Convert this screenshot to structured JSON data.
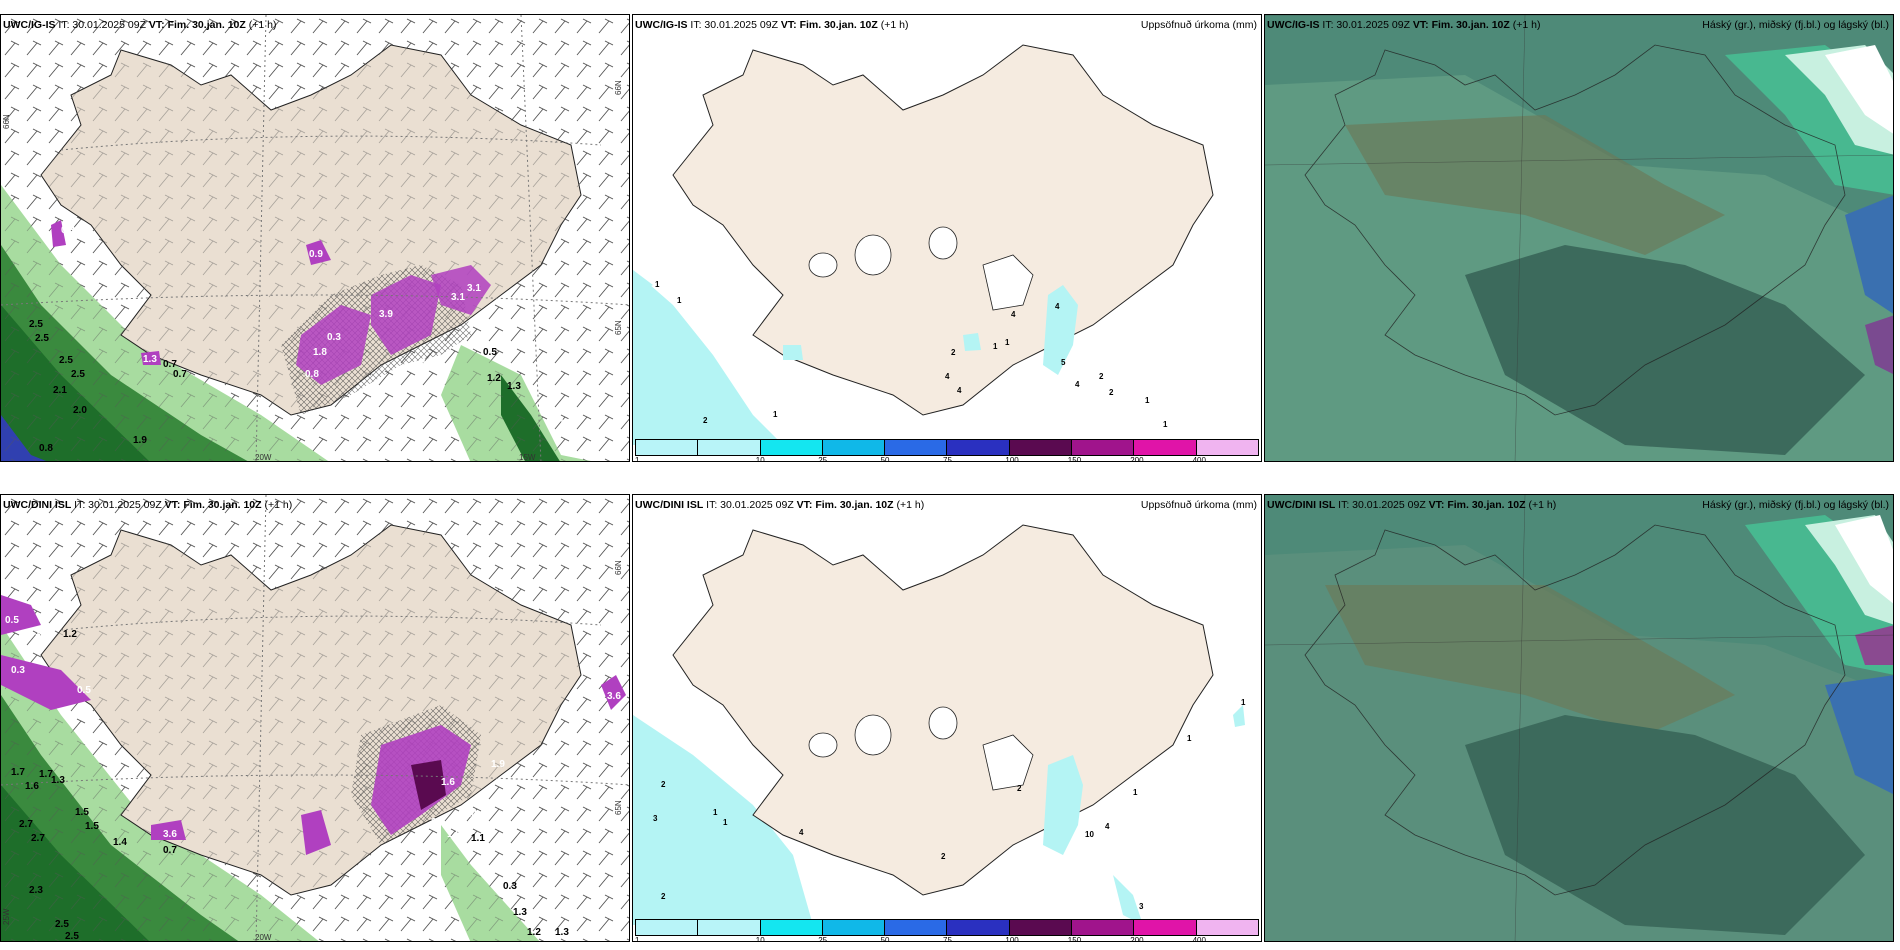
{
  "panels": [
    {
      "model": "UWC/IG-IS",
      "it": "IT: 30.01.2025 09Z",
      "vt_label": "VT:",
      "vt": "Fim. 30.jan. 10Z",
      "lead": "(+1 h)",
      "right_title": ""
    },
    {
      "model": "UWC/IG-IS",
      "it": "IT: 30.01.2025 09Z",
      "vt_label": "VT:",
      "vt": "Fim. 30.jan. 10Z",
      "lead": "(+1 h)",
      "right_title": "Uppsöfnuð úrkoma (mm)"
    },
    {
      "model": "UWC/IG-IS",
      "it": "IT: 30.01.2025 09Z",
      "vt_label": "VT:",
      "vt": "Fim. 30.jan. 10Z",
      "lead": "(+1 h)",
      "right_title": "Háský (gr.), miðský (fj.bl.) og lágský (bl.)"
    },
    {
      "model": "UWC/DINI ISL",
      "it": "IT: 30.01.2025 09Z",
      "vt_label": "VT:",
      "vt": "Fim. 30.jan. 10Z",
      "lead": "(+1 h)",
      "right_title": ""
    },
    {
      "model": "UWC/DINI ISL",
      "it": "IT: 30.01.2025 09Z",
      "vt_label": "VT:",
      "vt": "Fim. 30.jan. 10Z",
      "lead": "(+1 h)",
      "right_title": "Uppsöfnuð úrkoma (mm)"
    },
    {
      "model": "UWC/DINI ISL",
      "it": "IT: 30.01.2025 09Z",
      "vt_label": "VT:",
      "vt": "Fim. 30.jan. 10Z",
      "lead": "(+1 h)",
      "right_title": "Háský (gr.), miðský (fj.bl.) og lágský (bl.)"
    }
  ],
  "colorbar": {
    "labels": [
      "1",
      "10",
      "25",
      "50",
      "75",
      "100",
      "150",
      "200",
      "400"
    ],
    "colors": [
      "#b8f4f8",
      "#14e6f0",
      "#10b8e8",
      "#2a6ae6",
      "#2a30c0",
      "#5a0a50",
      "#a0148c",
      "#e014a8",
      "#f0b4f0"
    ]
  },
  "wind_panel_top": {
    "lat_labels": [
      "66N",
      "65N"
    ],
    "lon_labels": [
      "20W",
      "15W"
    ],
    "values": [
      "0.9",
      "0.3",
      "3.9",
      "3.1",
      "1.8",
      "0.8",
      "1.0",
      "1.3",
      "0.7",
      "0.7",
      "2.5",
      "2.5",
      "2.5",
      "2.5",
      "2.1",
      "2.0",
      "1.9",
      "0.5",
      "1.2",
      "1.3",
      "1.0",
      "0.3",
      "3.1",
      "0.8"
    ]
  },
  "wind_panel_bottom": {
    "lat_labels": [
      "66N",
      "65N"
    ],
    "lon_labels": [
      "20W",
      "25W"
    ],
    "values": [
      "0.5",
      "1.6",
      "1.2",
      "0.3",
      "0.5",
      "1.7",
      "1.7",
      "1.3",
      "1.6",
      "1.5",
      "1.5",
      "2.7",
      "2.7",
      "1.4",
      "3.6",
      "0.7",
      "2.3",
      "2.5",
      "2.5",
      "1.6",
      "1.9",
      "3.1",
      "4.4",
      "1.1",
      "1.5",
      "0.3",
      "1.3",
      "1.2",
      "1.3",
      "3.6"
    ]
  },
  "precip_top_values": [
    "1",
    "1",
    "2",
    "1",
    "2",
    "4",
    "1",
    "1",
    "4",
    "4",
    "5",
    "4",
    "2",
    "2",
    "4",
    "1",
    "1"
  ],
  "precip_bottom_values": [
    "2",
    "3",
    "1",
    "1",
    "4",
    "2",
    "2",
    "10",
    "4",
    "1",
    "1",
    "1",
    "3",
    "2"
  ],
  "colors": {
    "land": "#f5ebe0",
    "land_wind": "#eadfd2",
    "sea_precip": "#b4f4f4",
    "green_dark": "#1e6e2a",
    "green_light": "#a8dca0",
    "magenta": "#b040c0",
    "cloud_bg": "#4e8a78"
  }
}
